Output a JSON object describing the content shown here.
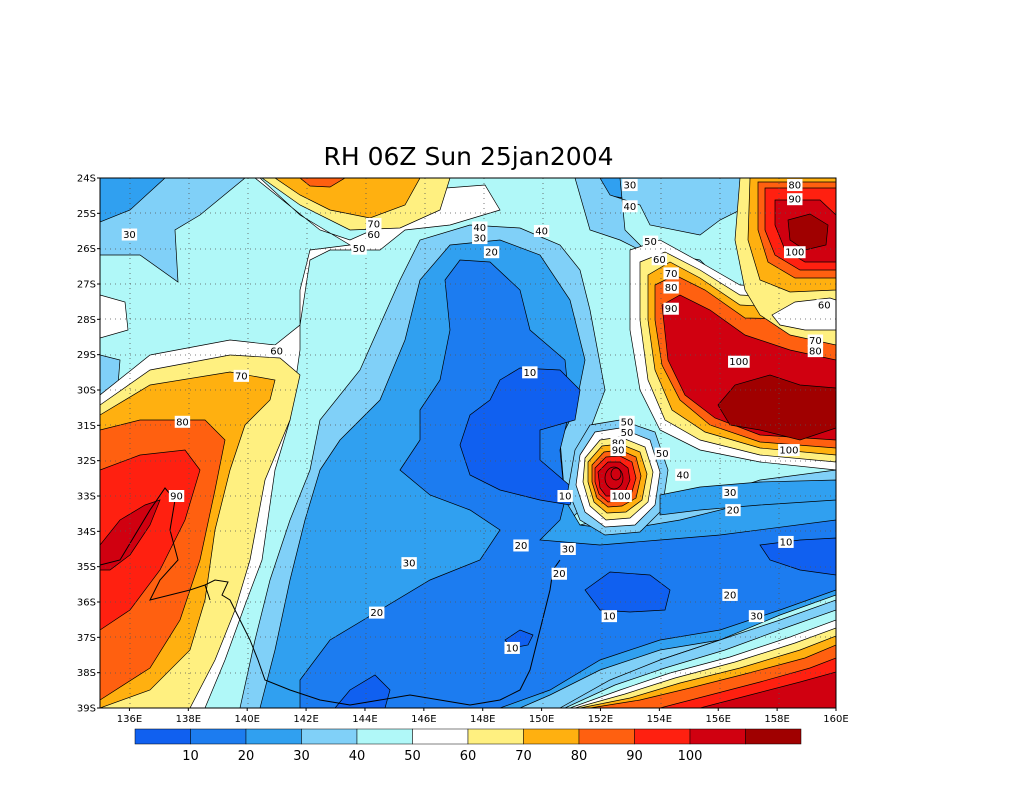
{
  "title": "RH 06Z Sun 25jan2004",
  "map": {
    "lat_labels": [
      "24S",
      "25S",
      "26S",
      "27S",
      "28S",
      "29S",
      "30S",
      "31S",
      "32S",
      "33S",
      "34S",
      "35S",
      "36S",
      "37S",
      "38S",
      "39S"
    ],
    "lon_labels": [
      "136E",
      "138E",
      "140E",
      "142E",
      "144E",
      "146E",
      "148E",
      "150E",
      "152E",
      "154E",
      "156E",
      "158E",
      "160E"
    ],
    "extent": {
      "lon_min": 135,
      "lon_max": 160,
      "lat_min": -39,
      "lat_max": -24
    },
    "grid": "dotted"
  },
  "colorbar": {
    "colors": [
      "#1060f0",
      "#1c7cf0",
      "#30a0f0",
      "#80d0f8",
      "#b0f8f8",
      "#ffffff",
      "#fff080",
      "#ffb010",
      "#ff6010",
      "#ff2010",
      "#d00010",
      "#a00000"
    ],
    "labels": [
      "10",
      "20",
      "30",
      "40",
      "50",
      "60",
      "70",
      "80",
      "90",
      "100"
    ]
  },
  "contour_labels": [
    {
      "text": "30",
      "lon": 136.0,
      "lat": -25.6
    },
    {
      "text": "70",
      "lon": 144.3,
      "lat": -25.3
    },
    {
      "text": "60",
      "lon": 144.3,
      "lat": -25.6
    },
    {
      "text": "50",
      "lon": 143.8,
      "lat": -26.0
    },
    {
      "text": "40",
      "lon": 147.9,
      "lat": -25.4
    },
    {
      "text": "30",
      "lon": 147.9,
      "lat": -25.7
    },
    {
      "text": "20",
      "lon": 148.3,
      "lat": -26.1
    },
    {
      "text": "40",
      "lon": 150.0,
      "lat": -25.5
    },
    {
      "text": "30",
      "lon": 153.0,
      "lat": -24.2
    },
    {
      "text": "40",
      "lon": 153.0,
      "lat": -24.8
    },
    {
      "text": "50",
      "lon": 153.7,
      "lat": -25.8
    },
    {
      "text": "60",
      "lon": 154.0,
      "lat": -26.3
    },
    {
      "text": "70",
      "lon": 154.4,
      "lat": -26.7
    },
    {
      "text": "80",
      "lon": 154.4,
      "lat": -27.1
    },
    {
      "text": "90",
      "lon": 154.4,
      "lat": -27.7
    },
    {
      "text": "80",
      "lon": 158.6,
      "lat": -24.2
    },
    {
      "text": "90",
      "lon": 158.6,
      "lat": -24.6
    },
    {
      "text": "100",
      "lon": 158.6,
      "lat": -26.1
    },
    {
      "text": "60",
      "lon": 159.6,
      "lat": -27.6
    },
    {
      "text": "70",
      "lon": 159.3,
      "lat": -28.6
    },
    {
      "text": "80",
      "lon": 159.3,
      "lat": -28.9
    },
    {
      "text": "60",
      "lon": 141.0,
      "lat": -28.9
    },
    {
      "text": "70",
      "lon": 139.8,
      "lat": -29.6
    },
    {
      "text": "10",
      "lon": 149.6,
      "lat": -29.5
    },
    {
      "text": "100",
      "lon": 156.7,
      "lat": -29.2
    },
    {
      "text": "80",
      "lon": 137.8,
      "lat": -30.9
    },
    {
      "text": "50",
      "lon": 152.9,
      "lat": -30.9
    },
    {
      "text": "50",
      "lon": 152.9,
      "lat": -31.2
    },
    {
      "text": "80",
      "lon": 152.6,
      "lat": -31.5
    },
    {
      "text": "90",
      "lon": 152.6,
      "lat": -31.7
    },
    {
      "text": "50",
      "lon": 154.1,
      "lat": -31.8
    },
    {
      "text": "40",
      "lon": 154.8,
      "lat": -32.4
    },
    {
      "text": "100",
      "lon": 152.7,
      "lat": -33.0
    },
    {
      "text": "100",
      "lon": 158.4,
      "lat": -31.7
    },
    {
      "text": "10",
      "lon": 150.8,
      "lat": -33.0
    },
    {
      "text": "30",
      "lon": 156.4,
      "lat": -32.9
    },
    {
      "text": "20",
      "lon": 156.5,
      "lat": -33.4
    },
    {
      "text": "90",
      "lon": 137.6,
      "lat": -33.0
    },
    {
      "text": "20",
      "lon": 149.3,
      "lat": -34.4
    },
    {
      "text": "30",
      "lon": 150.9,
      "lat": -34.5
    },
    {
      "text": "10",
      "lon": 158.3,
      "lat": -34.3
    },
    {
      "text": "30",
      "lon": 145.5,
      "lat": -34.9
    },
    {
      "text": "20",
      "lon": 150.6,
      "lat": -35.2
    },
    {
      "text": "20",
      "lon": 156.4,
      "lat": -35.8
    },
    {
      "text": "20",
      "lon": 144.4,
      "lat": -36.3
    },
    {
      "text": "10",
      "lon": 152.3,
      "lat": -36.4
    },
    {
      "text": "30",
      "lon": 157.3,
      "lat": -36.4
    },
    {
      "text": "10",
      "lon": 149.0,
      "lat": -37.3
    }
  ]
}
